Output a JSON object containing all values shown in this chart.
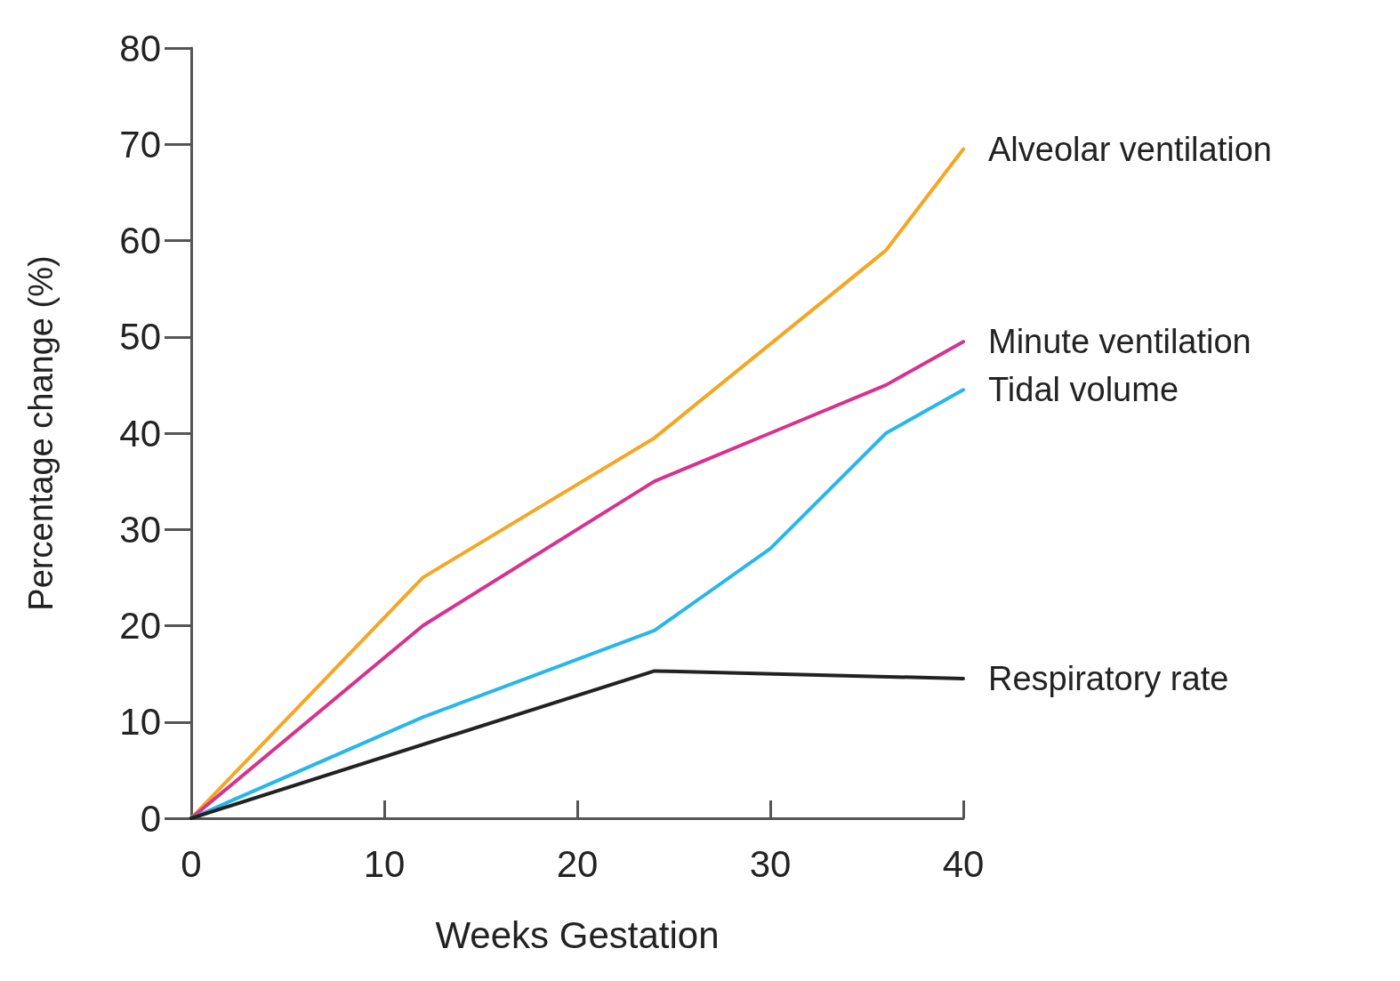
{
  "chart_data": {
    "type": "line",
    "xlabel": "Weeks Gestation",
    "ylabel": "Percentage change (%)",
    "xlim": [
      0,
      40
    ],
    "xticks": [
      0,
      10,
      20,
      30,
      40
    ],
    "ylim": [
      0,
      80
    ],
    "yticks": [
      0,
      10,
      20,
      30,
      40,
      50,
      60,
      70,
      80
    ],
    "grid": false,
    "legend": false,
    "marker": "none",
    "line_style": "solid",
    "series": [
      {
        "name": "Alveolar ventilation",
        "color": "#f5a623",
        "x": [
          0,
          12,
          24,
          36,
          40
        ],
        "values": [
          0,
          25,
          39.5,
          59,
          69.5
        ]
      },
      {
        "name": "Minute ventilation",
        "color": "#d6338f",
        "x": [
          0,
          12,
          24,
          30,
          36,
          40
        ],
        "values": [
          0,
          20,
          35,
          40,
          45,
          49.5
        ]
      },
      {
        "name": "Tidal volume",
        "color": "#29b6e8",
        "x": [
          0,
          12,
          24,
          30,
          36,
          40
        ],
        "values": [
          0,
          10.5,
          19.5,
          28,
          40,
          44.5
        ]
      },
      {
        "name": "Respiratory rate",
        "color": "#222222",
        "x": [
          0,
          24,
          40
        ],
        "values": [
          0,
          15.3,
          14.5
        ]
      }
    ]
  }
}
